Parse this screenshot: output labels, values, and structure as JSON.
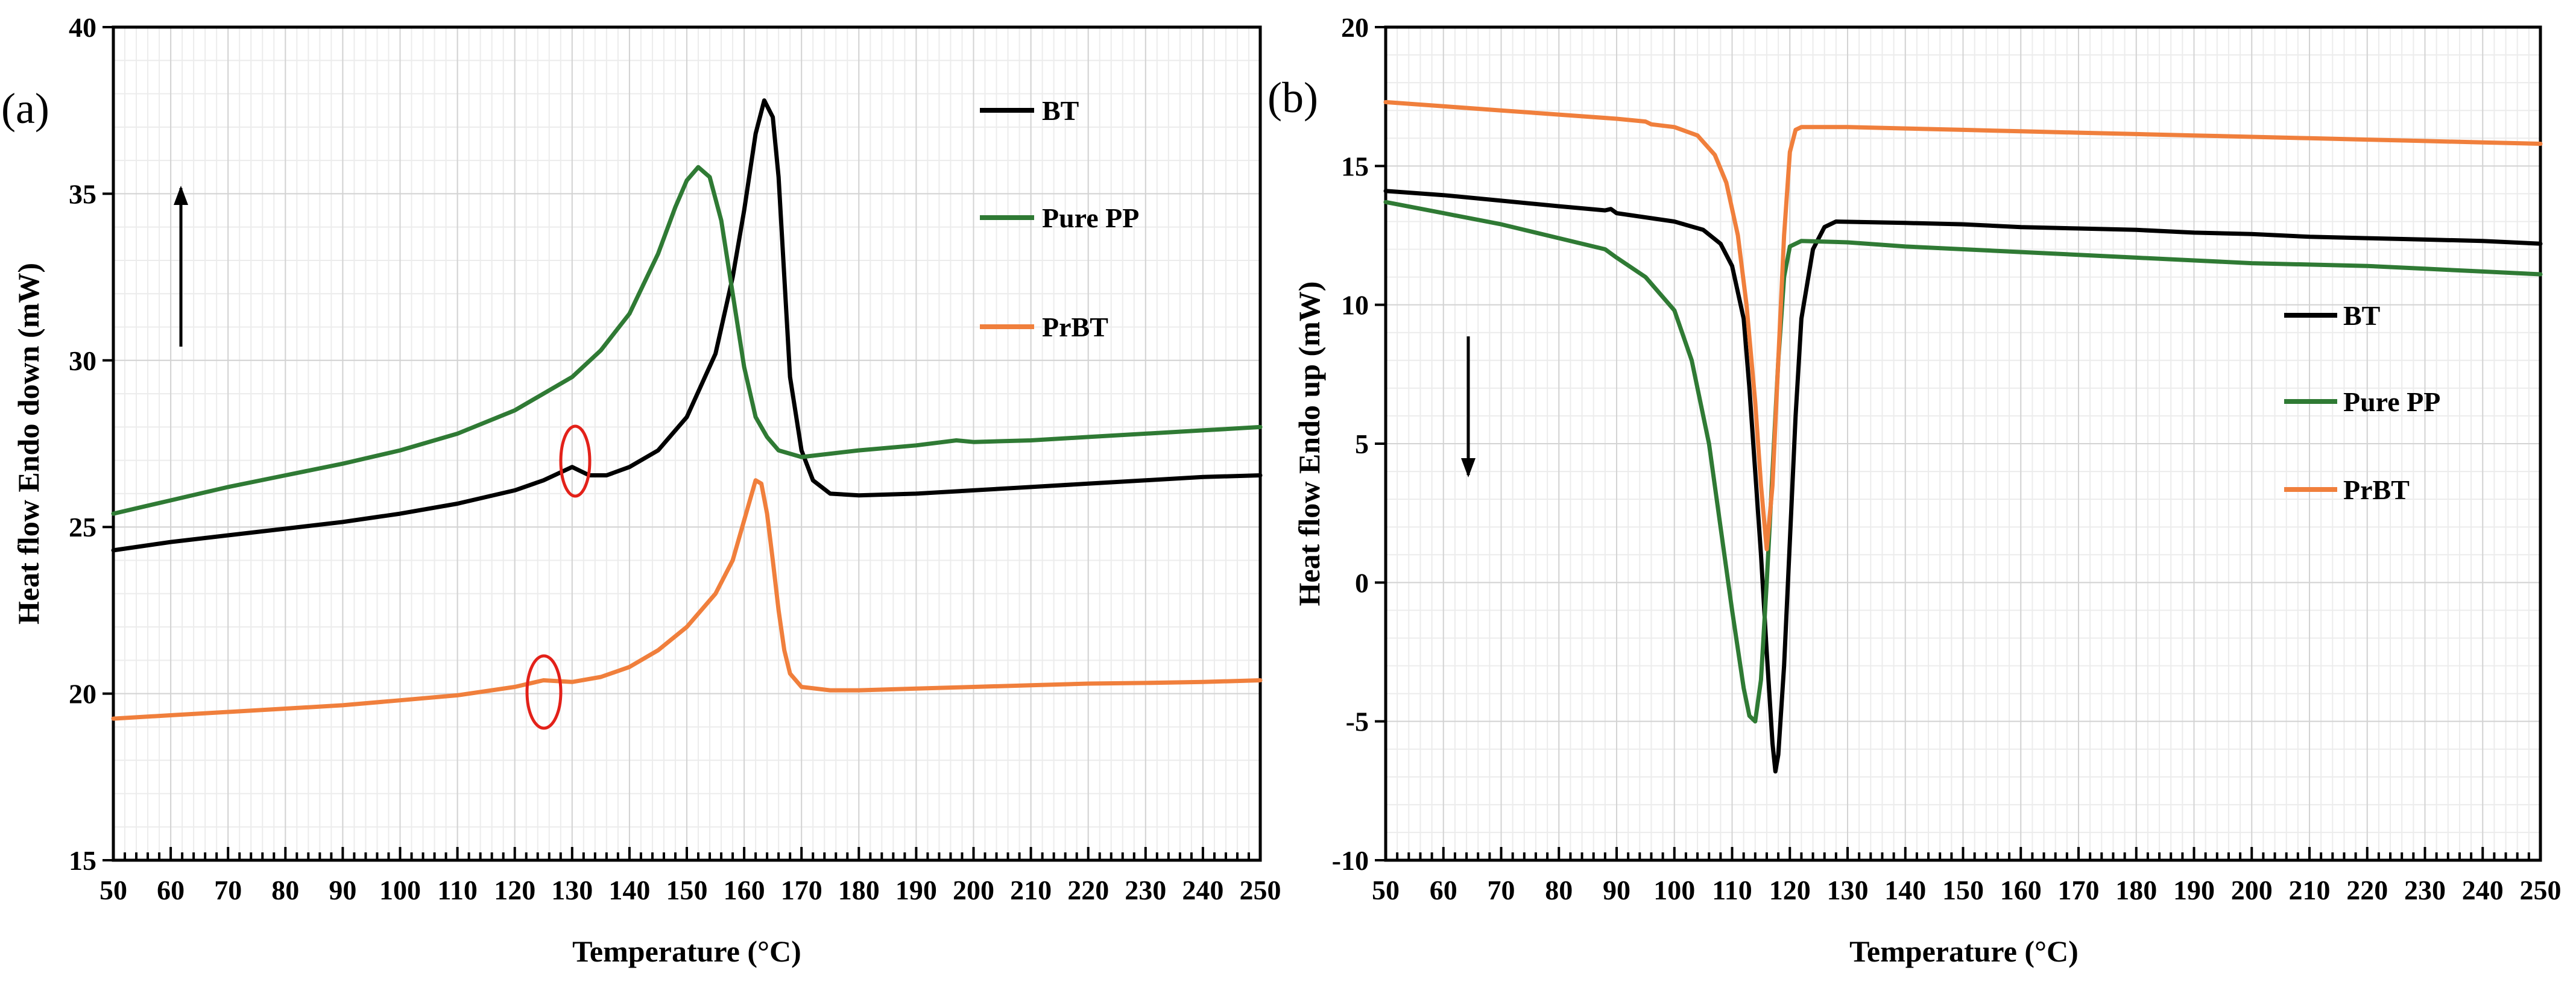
{
  "chart_data": [
    {
      "panel_label": "(a)",
      "type": "line",
      "xlabel": "Temperature (°C)",
      "ylabel": "Heat flow Endo down (mW)",
      "xlim": [
        50,
        250
      ],
      "ylim": [
        15,
        40
      ],
      "x_ticks": [
        50,
        60,
        70,
        80,
        90,
        100,
        110,
        120,
        130,
        140,
        150,
        160,
        170,
        180,
        190,
        200,
        210,
        220,
        230,
        240,
        250
      ],
      "y_ticks": [
        15,
        20,
        25,
        30,
        35,
        40
      ],
      "arrow": "up",
      "legend": [
        "BT",
        "Pure PP",
        "PrBT"
      ],
      "series": [
        {
          "name": "BT",
          "color": "#000000",
          "points": [
            [
              50,
              24.3
            ],
            [
              60,
              24.55
            ],
            [
              70,
              24.75
            ],
            [
              80,
              24.95
            ],
            [
              90,
              25.15
            ],
            [
              100,
              25.4
            ],
            [
              110,
              25.7
            ],
            [
              120,
              26.1
            ],
            [
              125,
              26.4
            ],
            [
              130,
              26.8
            ],
            [
              133,
              26.55
            ],
            [
              136,
              26.55
            ],
            [
              140,
              26.8
            ],
            [
              145,
              27.3
            ],
            [
              150,
              28.3
            ],
            [
              155,
              30.2
            ],
            [
              158,
              32.5
            ],
            [
              160,
              34.5
            ],
            [
              162,
              36.8
            ],
            [
              163.5,
              37.8
            ],
            [
              165,
              37.3
            ],
            [
              166,
              35.5
            ],
            [
              167,
              32.5
            ],
            [
              168,
              29.5
            ],
            [
              170,
              27.3
            ],
            [
              172,
              26.4
            ],
            [
              175,
              26.0
            ],
            [
              180,
              25.95
            ],
            [
              190,
              26.0
            ],
            [
              200,
              26.1
            ],
            [
              210,
              26.2
            ],
            [
              220,
              26.3
            ],
            [
              230,
              26.4
            ],
            [
              240,
              26.5
            ],
            [
              250,
              26.55
            ]
          ]
        },
        {
          "name": "Pure PP",
          "color": "#2f7a34",
          "points": [
            [
              50,
              25.4
            ],
            [
              60,
              25.8
            ],
            [
              70,
              26.2
            ],
            [
              80,
              26.55
            ],
            [
              90,
              26.9
            ],
            [
              100,
              27.3
            ],
            [
              110,
              27.8
            ],
            [
              120,
              28.5
            ],
            [
              130,
              29.5
            ],
            [
              135,
              30.3
            ],
            [
              140,
              31.4
            ],
            [
              145,
              33.2
            ],
            [
              148,
              34.6
            ],
            [
              150,
              35.4
            ],
            [
              152,
              35.8
            ],
            [
              154,
              35.5
            ],
            [
              156,
              34.2
            ],
            [
              158,
              32.0
            ],
            [
              160,
              29.8
            ],
            [
              162,
              28.3
            ],
            [
              164,
              27.7
            ],
            [
              166,
              27.3
            ],
            [
              170,
              27.1
            ],
            [
              175,
              27.2
            ],
            [
              180,
              27.3
            ],
            [
              190,
              27.45
            ],
            [
              197,
              27.6
            ],
            [
              200,
              27.55
            ],
            [
              210,
              27.6
            ],
            [
              220,
              27.7
            ],
            [
              230,
              27.8
            ],
            [
              240,
              27.9
            ],
            [
              250,
              28.0
            ]
          ]
        },
        {
          "name": "PrBT",
          "color": "#f07f3c",
          "points": [
            [
              50,
              19.25
            ],
            [
              60,
              19.35
            ],
            [
              70,
              19.45
            ],
            [
              80,
              19.55
            ],
            [
              90,
              19.65
            ],
            [
              100,
              19.8
            ],
            [
              110,
              19.95
            ],
            [
              120,
              20.2
            ],
            [
              125,
              20.4
            ],
            [
              130,
              20.35
            ],
            [
              135,
              20.5
            ],
            [
              140,
              20.8
            ],
            [
              145,
              21.3
            ],
            [
              150,
              22.0
            ],
            [
              155,
              23.0
            ],
            [
              158,
              24.0
            ],
            [
              160,
              25.2
            ],
            [
              162,
              26.4
            ],
            [
              163,
              26.3
            ],
            [
              164,
              25.4
            ],
            [
              165,
              24.0
            ],
            [
              166,
              22.5
            ],
            [
              167,
              21.3
            ],
            [
              168,
              20.6
            ],
            [
              170,
              20.2
            ],
            [
              175,
              20.1
            ],
            [
              180,
              20.1
            ],
            [
              190,
              20.15
            ],
            [
              200,
              20.2
            ],
            [
              210,
              20.25
            ],
            [
              220,
              20.3
            ],
            [
              230,
              20.32
            ],
            [
              240,
              20.35
            ],
            [
              250,
              20.4
            ]
          ]
        }
      ],
      "annotations": [
        {
          "type": "ellipse",
          "color": "#e32119",
          "x": 130,
          "y": 26.9
        },
        {
          "type": "ellipse",
          "color": "#e32119",
          "x": 125,
          "y": 20.1
        }
      ]
    },
    {
      "panel_label": "(b)",
      "type": "line",
      "xlabel": "Temperature (°C)",
      "ylabel": "Heat flow Endo up (mW)",
      "xlim": [
        50,
        250
      ],
      "ylim": [
        -10,
        20
      ],
      "x_ticks": [
        50,
        60,
        70,
        80,
        90,
        100,
        110,
        120,
        130,
        140,
        150,
        160,
        170,
        180,
        190,
        200,
        210,
        220,
        230,
        240,
        250
      ],
      "y_ticks": [
        -10,
        -5,
        0,
        5,
        10,
        15,
        20
      ],
      "arrow": "down",
      "legend": [
        "BT",
        "Pure PP",
        "PrBT"
      ],
      "series": [
        {
          "name": "BT",
          "color": "#000000",
          "points": [
            [
              50,
              14.1
            ],
            [
              60,
              13.95
            ],
            [
              70,
              13.75
            ],
            [
              80,
              13.55
            ],
            [
              88,
              13.4
            ],
            [
              89,
              13.45
            ],
            [
              90,
              13.3
            ],
            [
              100,
              13.0
            ],
            [
              105,
              12.7
            ],
            [
              108,
              12.2
            ],
            [
              110,
              11.4
            ],
            [
              112,
              9.5
            ],
            [
              113,
              7.0
            ],
            [
              114,
              4.0
            ],
            [
              115,
              1.0
            ],
            [
              116,
              -2.5
            ],
            [
              117,
              -5.8
            ],
            [
              117.5,
              -6.8
            ],
            [
              118,
              -6.2
            ],
            [
              119,
              -3.0
            ],
            [
              120,
              1.5
            ],
            [
              121,
              6.0
            ],
            [
              122,
              9.5
            ],
            [
              124,
              12.0
            ],
            [
              126,
              12.8
            ],
            [
              128,
              13.0
            ],
            [
              140,
              12.95
            ],
            [
              150,
              12.9
            ],
            [
              160,
              12.8
            ],
            [
              170,
              12.75
            ],
            [
              180,
              12.7
            ],
            [
              190,
              12.6
            ],
            [
              200,
              12.55
            ],
            [
              210,
              12.45
            ],
            [
              220,
              12.4
            ],
            [
              230,
              12.35
            ],
            [
              240,
              12.3
            ],
            [
              250,
              12.2
            ]
          ]
        },
        {
          "name": "Pure PP",
          "color": "#2f7a34",
          "points": [
            [
              50,
              13.7
            ],
            [
              60,
              13.3
            ],
            [
              70,
              12.9
            ],
            [
              80,
              12.4
            ],
            [
              88,
              12.0
            ],
            [
              90,
              11.7
            ],
            [
              95,
              11.0
            ],
            [
              100,
              9.8
            ],
            [
              103,
              8.0
            ],
            [
              106,
              5.0
            ],
            [
              108,
              2.0
            ],
            [
              110,
              -1.0
            ],
            [
              112,
              -3.8
            ],
            [
              113,
              -4.8
            ],
            [
              114,
              -5.0
            ],
            [
              115,
              -3.5
            ],
            [
              116,
              0.0
            ],
            [
              117,
              4.0
            ],
            [
              118,
              8.0
            ],
            [
              119,
              11.0
            ],
            [
              120,
              12.1
            ],
            [
              122,
              12.3
            ],
            [
              130,
              12.25
            ],
            [
              140,
              12.1
            ],
            [
              150,
              12.0
            ],
            [
              160,
              11.9
            ],
            [
              170,
              11.8
            ],
            [
              180,
              11.7
            ],
            [
              190,
              11.6
            ],
            [
              200,
              11.5
            ],
            [
              210,
              11.45
            ],
            [
              220,
              11.4
            ],
            [
              230,
              11.3
            ],
            [
              240,
              11.2
            ],
            [
              250,
              11.1
            ]
          ]
        },
        {
          "name": "PrBT",
          "color": "#f07f3c",
          "points": [
            [
              50,
              17.3
            ],
            [
              60,
              17.15
            ],
            [
              70,
              17.0
            ],
            [
              80,
              16.85
            ],
            [
              90,
              16.7
            ],
            [
              95,
              16.6
            ],
            [
              96,
              16.5
            ],
            [
              100,
              16.4
            ],
            [
              104,
              16.1
            ],
            [
              107,
              15.4
            ],
            [
              109,
              14.4
            ],
            [
              111,
              12.5
            ],
            [
              112.5,
              10.0
            ],
            [
              114,
              6.5
            ],
            [
              115,
              3.5
            ],
            [
              116,
              1.2
            ],
            [
              117,
              3.5
            ],
            [
              118,
              8.0
            ],
            [
              119,
              12.5
            ],
            [
              120,
              15.5
            ],
            [
              121,
              16.3
            ],
            [
              122,
              16.4
            ],
            [
              130,
              16.4
            ],
            [
              140,
              16.35
            ],
            [
              150,
              16.3
            ],
            [
              160,
              16.25
            ],
            [
              170,
              16.2
            ],
            [
              180,
              16.15
            ],
            [
              190,
              16.1
            ],
            [
              200,
              16.05
            ],
            [
              210,
              16.0
            ],
            [
              220,
              15.95
            ],
            [
              230,
              15.9
            ],
            [
              240,
              15.85
            ],
            [
              250,
              15.8
            ]
          ]
        }
      ],
      "annotations": []
    }
  ]
}
